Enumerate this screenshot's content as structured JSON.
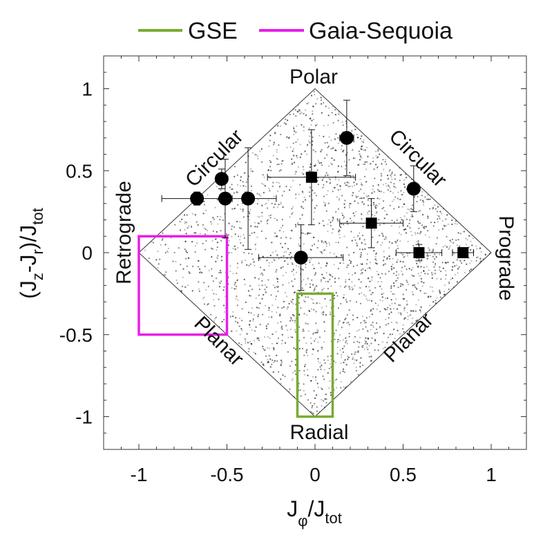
{
  "chart_data": {
    "type": "scatter",
    "title": "",
    "xlabel_main": "J",
    "xlabel_sub_phi": "φ",
    "xlabel_main2": "/J",
    "xlabel_sub_tot": "tot",
    "ylabel_parts": [
      "(J",
      "z",
      "-J",
      "r",
      ")/J",
      "tot"
    ],
    "xlim": [
      -1.2,
      1.2
    ],
    "ylim": [
      -1.2,
      1.2
    ],
    "xticks": [
      -1,
      -0.5,
      0,
      0.5,
      1
    ],
    "xtick_labels": [
      "-1",
      "-0.5",
      "0",
      "0.5",
      "1"
    ],
    "yticks": [
      -1,
      -0.5,
      0,
      0.5,
      1
    ],
    "ytick_labels": [
      "-1",
      "-0.5",
      "0",
      "0.5",
      "1"
    ],
    "legend": {
      "placement": "top-outside",
      "entries": [
        {
          "label": "GSE",
          "color": "#77ac30"
        },
        {
          "label": "Gaia-Sequoia",
          "color": "#e81ee8"
        }
      ]
    },
    "region_labels": {
      "polar": "Polar",
      "radial": "Radial",
      "retrograde": "Retrograde",
      "prograde": "Prograde",
      "circular_left": "Circular",
      "circular_right": "Circular",
      "planar_left": "Planar",
      "planar_right": "Planar"
    },
    "boxes": [
      {
        "name": "GSE",
        "color": "#77ac30",
        "x": [
          -0.1,
          0.1
        ],
        "y": [
          -1.0,
          -0.25
        ]
      },
      {
        "name": "Gaia-Sequoia",
        "color": "#e81ee8",
        "x": [
          -1.0,
          -0.5
        ],
        "y": [
          -0.5,
          0.1
        ]
      }
    ],
    "background_density": "dense grey point cloud filling the diamond |x|+|y|<=1, concentrated near the prograde corner",
    "points": [
      {
        "marker": "circle",
        "x": -0.67,
        "y": 0.33,
        "xerr": 0.2,
        "yerr": 0.04
      },
      {
        "marker": "circle",
        "x": -0.53,
        "y": 0.45,
        "xerr": 0.02,
        "yerr": 0.06
      },
      {
        "marker": "circle",
        "x": -0.51,
        "y": 0.33,
        "xerr": 0.03,
        "yerr": 0.24
      },
      {
        "marker": "circle",
        "x": -0.38,
        "y": 0.33,
        "xerr": 0.16,
        "yerr": 0.31
      },
      {
        "marker": "square",
        "x": -0.02,
        "y": 0.46,
        "xerr": 0.25,
        "yerr": 0.29
      },
      {
        "marker": "circle",
        "x": 0.18,
        "y": 0.7,
        "xerr": 0.04,
        "yerr": 0.23
      },
      {
        "marker": "circle",
        "x": 0.56,
        "y": 0.39,
        "xerr": 0.03,
        "yerr": 0.14
      },
      {
        "marker": "square",
        "x": 0.32,
        "y": 0.18,
        "xerr": 0.18,
        "yerr": 0.15
      },
      {
        "marker": "circle",
        "x": -0.08,
        "y": -0.03,
        "xerr": 0.24,
        "yerr": 0.2
      },
      {
        "marker": "square",
        "x": 0.59,
        "y": 0.0,
        "xerr": 0.13,
        "yerr": 0.05
      },
      {
        "marker": "square",
        "x": 0.84,
        "y": 0.0,
        "xerr": 0.06,
        "yerr": 0.01
      }
    ]
  }
}
